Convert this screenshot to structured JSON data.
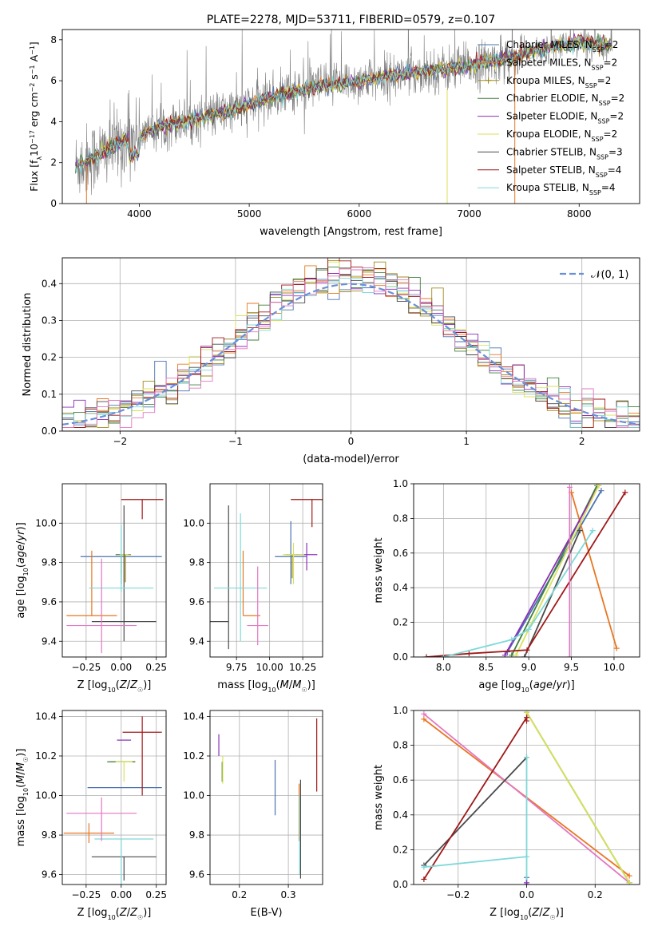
{
  "chart_data": [
    {
      "id": "spectrum",
      "type": "line",
      "title": "PLATE=2278, MJD=53711, FIBERID=0579, z=0.107",
      "xlabel": "wavelength [Angstrom, rest frame]",
      "ylabel": "Flux [f_λ 10^-17 erg cm^-2 s^-1 A^-1]",
      "xlim": [
        3300,
        8550
      ],
      "ylim": [
        0,
        8.5
      ],
      "xticks": [
        4000,
        5000,
        6000,
        7000,
        8000
      ],
      "yticks": [
        0,
        2,
        4,
        6,
        8
      ],
      "grid": false,
      "legend_position": "top-right",
      "data_series": {
        "name": "data",
        "color": "#808080"
      },
      "series": [
        {
          "name": "Chabrier MILES, N_SSP=2",
          "color": "#4c72b0"
        },
        {
          "name": "Salpeter MILES, N_SSP=2",
          "color": "#e87722"
        },
        {
          "name": "Kroupa MILES, N_SSP=2",
          "color": "#a0891e"
        },
        {
          "name": "Chabrier ELODIE, N_SSP=2",
          "color": "#3f7f3f"
        },
        {
          "name": "Salpeter ELODIE, N_SSP=2",
          "color": "#8b2fb8"
        },
        {
          "name": "Kroupa ELODIE, N_SSP=2",
          "color": "#d8e25a"
        },
        {
          "name": "Chabrier STELIB, N_SSP=3",
          "color": "#4a4a4a"
        },
        {
          "name": "Salpeter STELIB, N_SSP=4",
          "color": "#a01818"
        },
        {
          "name": "Kroupa STELIB, N_SSP=4",
          "color": "#7fd8d8"
        }
      ],
      "continuum": [
        [
          3400,
          1.8
        ],
        [
          3600,
          2.3
        ],
        [
          3800,
          2.9
        ],
        [
          4000,
          3.3
        ],
        [
          4200,
          3.8
        ],
        [
          4500,
          4.1
        ],
        [
          4800,
          4.5
        ],
        [
          5000,
          4.8
        ],
        [
          5200,
          5.2
        ],
        [
          5500,
          5.6
        ],
        [
          6000,
          6.0
        ],
        [
          6500,
          6.4
        ],
        [
          7000,
          6.7
        ],
        [
          7500,
          7.3
        ],
        [
          8000,
          7.9
        ],
        [
          8300,
          7.7
        ]
      ]
    },
    {
      "id": "residuals",
      "type": "line",
      "xlabel": "(data-model)/error",
      "ylabel": "Normed distribution",
      "xlim": [
        -2.5,
        2.5
      ],
      "ylim": [
        0,
        0.47
      ],
      "xticks": [
        -2,
        -1,
        0,
        1,
        2
      ],
      "yticks": [
        0,
        0.1,
        0.2,
        0.3,
        0.4
      ],
      "grid": true,
      "legend_position": "top-right",
      "reference": {
        "name": "𝒩(0, 1)",
        "color": "#6a8fd8"
      },
      "bin_width": 0.1
    },
    {
      "id": "Z_age",
      "type": "scatter",
      "xlabel": "Z [log10(Z/Z☉)]",
      "ylabel": "age [log10(age/yr)]",
      "xlim": [
        -0.42,
        0.32
      ],
      "ylim": [
        9.32,
        10.2
      ],
      "xticks": [
        -0.25,
        0.0,
        0.25
      ],
      "yticks": [
        9.4,
        9.6,
        9.8,
        10.0
      ],
      "grid": true,
      "points": [
        {
          "series": "Chabrier MILES",
          "x": 0.0,
          "y": 9.83,
          "xerr": [
            0.29,
            0.29
          ],
          "yerr": [
            0.14,
            0.0
          ],
          "color": "#4c72b0"
        },
        {
          "series": "Salpeter MILES",
          "x": -0.21,
          "y": 9.53,
          "xerr": [
            0.18,
            0.18
          ],
          "yerr": [
            0.0,
            0.33
          ],
          "color": "#e87722"
        },
        {
          "series": "Kroupa MILES",
          "x": 0.03,
          "y": 9.84,
          "xerr": [
            0.04,
            0.04
          ],
          "yerr": [
            0.14,
            0.0
          ],
          "color": "#a0891e"
        },
        {
          "series": "Chabrier ELODIE",
          "x": 0.0,
          "y": 9.84,
          "xerr": [
            0.04,
            0.04
          ],
          "yerr": [
            0.1,
            0.0
          ],
          "color": "#3f7f3f"
        },
        {
          "series": "Kroupa ELODIE",
          "x": 0.02,
          "y": 9.84,
          "xerr": [
            0.03,
            0.03
          ],
          "yerr": [
            0.14,
            0.02
          ],
          "color": "#d8e25a"
        },
        {
          "series": "Chabrier STELIB",
          "x": 0.02,
          "y": 9.5,
          "xerr": [
            0.23,
            0.23
          ],
          "yerr": [
            0.1,
            0.59
          ],
          "color": "#4a4a4a"
        },
        {
          "series": "Salpeter STELIB",
          "x": 0.15,
          "y": 10.12,
          "xerr": [
            0.15,
            0.15
          ],
          "yerr": [
            0.1,
            0.0
          ],
          "color": "#a01818"
        },
        {
          "series": "Kroupa STELIB",
          "x": 0.0,
          "y": 9.67,
          "xerr": [
            0.23,
            0.23
          ],
          "yerr": [
            0.02,
            0.32
          ],
          "color": "#7fd8d8"
        },
        {
          "series": "pink",
          "x": -0.14,
          "y": 9.48,
          "xerr": [
            0.25,
            0.25
          ],
          "yerr": [
            0.14,
            0.34
          ],
          "color": "#e377c2"
        }
      ]
    },
    {
      "id": "mass_age",
      "type": "scatter",
      "xlabel": "mass [log10(M/M☉)]",
      "ylabel": "",
      "xlim": [
        9.55,
        10.4
      ],
      "ylim": [
        9.32,
        10.2
      ],
      "xticks": [
        9.75,
        10.0,
        10.25
      ],
      "yticks": [
        9.4,
        9.6,
        9.8,
        10.0
      ],
      "grid": true,
      "points": [
        {
          "series": "Chabrier MILES",
          "x": 10.16,
          "y": 9.83,
          "xerr": [
            0.12,
            0.12
          ],
          "yerr": [
            0.14,
            0.18
          ],
          "color": "#4c72b0"
        },
        {
          "series": "Salpeter MILES",
          "x": 9.8,
          "y": 9.53,
          "xerr": [
            0.0,
            0.13
          ],
          "yerr": [
            0.0,
            0.33
          ],
          "color": "#e87722"
        },
        {
          "series": "Kroupa MILES",
          "x": 10.17,
          "y": 9.84,
          "xerr": [
            0.0,
            0.0
          ],
          "yerr": [
            0.12,
            0.0
          ],
          "color": "#a0891e"
        },
        {
          "series": "Chabrier ELODIE",
          "x": 10.17,
          "y": 9.84,
          "xerr": [
            0.05,
            0.05
          ],
          "yerr": [
            0.0,
            0.0
          ],
          "color": "#3f7f3f"
        },
        {
          "series": "Salpeter ELODIE",
          "x": 10.28,
          "y": 9.84,
          "xerr": [
            0.08,
            0.08
          ],
          "yerr": [
            0.08,
            0.06
          ],
          "color": "#8b2fb8"
        },
        {
          "series": "Kroupa ELODIE",
          "x": 10.18,
          "y": 9.84,
          "xerr": [
            0.08,
            0.08
          ],
          "yerr": [
            0.15,
            0.06
          ],
          "color": "#d8e25a"
        },
        {
          "series": "Chabrier STELIB",
          "x": 9.69,
          "y": 9.5,
          "xerr": [
            0.15,
            0.0
          ],
          "yerr": [
            0.14,
            0.59
          ],
          "color": "#4a4a4a"
        },
        {
          "series": "Salpeter STELIB",
          "x": 10.32,
          "y": 10.12,
          "xerr": [
            0.16,
            0.16
          ],
          "yerr": [
            0.14,
            0.0
          ],
          "color": "#a01818"
        },
        {
          "series": "Kroupa STELIB",
          "x": 9.78,
          "y": 9.67,
          "xerr": [
            0.2,
            0.2
          ],
          "yerr": [
            0.27,
            0.38
          ],
          "color": "#7fd8d8"
        },
        {
          "series": "pink",
          "x": 9.91,
          "y": 9.48,
          "xerr": [
            0.08,
            0.08
          ],
          "yerr": [
            0.1,
            0.3
          ],
          "color": "#e377c2"
        }
      ]
    },
    {
      "id": "age_weight",
      "type": "line",
      "xlabel": "age [log10(age/yr)]",
      "ylabel": "mass weight",
      "xlim": [
        7.65,
        10.3
      ],
      "ylim": [
        0,
        1
      ],
      "xticks": [
        8.0,
        8.5,
        9.0,
        9.5,
        10.0
      ],
      "yticks": [
        0,
        0.2,
        0.4,
        0.6,
        0.8,
        1.0
      ],
      "grid": true,
      "series": [
        {
          "color": "#4c72b0",
          "points": [
            [
              8.75,
              0.03
            ],
            [
              9.85,
              0.96
            ]
          ]
        },
        {
          "color": "#e87722",
          "points": [
            [
              9.5,
              0.95
            ],
            [
              10.03,
              0.05
            ]
          ]
        },
        {
          "color": "#3f7f3f",
          "points": [
            [
              8.8,
              0.01
            ],
            [
              9.8,
              0.99
            ]
          ]
        },
        {
          "color": "#8b2fb8",
          "points": [
            [
              8.72,
              0.01
            ],
            [
              9.82,
              0.99
            ]
          ]
        },
        {
          "color": "#d8e25a",
          "points": [
            [
              8.85,
              0.01
            ],
            [
              9.82,
              0.99
            ]
          ]
        },
        {
          "color": "#4a4a4a",
          "points": [
            [
              8.95,
              0.0
            ],
            [
              9.6,
              0.73
            ]
          ]
        },
        {
          "color": "#a01818",
          "points": [
            [
              7.8,
              0.0
            ],
            [
              8.3,
              0.02
            ],
            [
              8.98,
              0.04
            ],
            [
              10.13,
              0.95
            ]
          ]
        },
        {
          "color": "#7fd8d8",
          "points": [
            [
              8.0,
              0.0
            ],
            [
              8.8,
              0.1
            ],
            [
              9.0,
              0.16
            ],
            [
              9.75,
              0.73
            ]
          ]
        },
        {
          "color": "#e377c2",
          "points": [
            [
              9.48,
              0.0
            ],
            [
              9.48,
              0.98
            ]
          ]
        }
      ]
    },
    {
      "id": "Z_mass",
      "type": "scatter",
      "xlabel": "Z [log10(Z/Z☉)]",
      "ylabel": "mass [log10(M/M☉)]",
      "xlim": [
        -0.42,
        0.32
      ],
      "ylim": [
        9.55,
        10.43
      ],
      "xticks": [
        -0.25,
        0.0,
        0.25
      ],
      "yticks": [
        9.6,
        9.8,
        10.0,
        10.2,
        10.4
      ],
      "grid": true,
      "points": [
        {
          "series": "Chabrier MILES",
          "x": 0.0,
          "y": 10.04,
          "xerr": [
            0.24,
            0.29
          ],
          "yerr": [
            0.0,
            0.0
          ],
          "color": "#4c72b0"
        },
        {
          "series": "Salpeter MILES",
          "x": -0.23,
          "y": 9.81,
          "xerr": [
            0.18,
            0.18
          ],
          "yerr": [
            0.05,
            0.05
          ],
          "color": "#e87722"
        },
        {
          "series": "Kroupa MILES",
          "x": 0.0,
          "y": 10.17,
          "xerr": [
            0.08,
            0.1
          ],
          "yerr": [
            0.0,
            0.0
          ],
          "color": "#a0891e"
        },
        {
          "series": "Chabrier ELODIE",
          "x": 0.0,
          "y": 10.17,
          "xerr": [
            0.1,
            0.1
          ],
          "yerr": [
            0.0,
            0.0
          ],
          "color": "#3f7f3f"
        },
        {
          "series": "Salpeter ELODIE",
          "x": 0.02,
          "y": 10.28,
          "xerr": [
            0.05,
            0.05
          ],
          "yerr": [
            0.0,
            0.0
          ],
          "color": "#8b2fb8"
        },
        {
          "series": "Kroupa ELODIE",
          "x": 0.02,
          "y": 10.17,
          "xerr": [
            0.06,
            0.06
          ],
          "yerr": [
            0.1,
            0.0
          ],
          "color": "#d8e25a"
        },
        {
          "series": "Chabrier STELIB",
          "x": 0.02,
          "y": 9.69,
          "xerr": [
            0.23,
            0.23
          ],
          "yerr": [
            0.12,
            0.0
          ],
          "color": "#4a4a4a"
        },
        {
          "series": "Salpeter STELIB",
          "x": 0.15,
          "y": 10.32,
          "xerr": [
            0.14,
            0.14
          ],
          "yerr": [
            0.32,
            0.08
          ],
          "color": "#a01818"
        },
        {
          "series": "Kroupa STELIB",
          "x": 0.0,
          "y": 9.78,
          "xerr": [
            0.19,
            0.23
          ],
          "yerr": [
            0.24,
            0.0
          ],
          "color": "#7fd8d8"
        },
        {
          "series": "pink",
          "x": -0.14,
          "y": 9.91,
          "xerr": [
            0.25,
            0.25
          ],
          "yerr": [
            0.14,
            0.08
          ],
          "color": "#e377c2"
        }
      ]
    },
    {
      "id": "ebv_mass",
      "type": "scatter",
      "xlabel": "E(B-V)",
      "ylabel": "",
      "xlim": [
        0.14,
        0.37
      ],
      "ylim": [
        9.55,
        10.43
      ],
      "xticks": [
        0.2,
        0.3
      ],
      "yticks": [
        9.6,
        9.8,
        10.0,
        10.2,
        10.4
      ],
      "grid": true,
      "points": [
        {
          "series": "Chabrier MILES",
          "x": 0.273,
          "y": 10.04,
          "xerr": [
            0,
            0
          ],
          "yerr": [
            0.14,
            0.14
          ],
          "color": "#4c72b0"
        },
        {
          "series": "Salpeter MILES",
          "x": 0.322,
          "y": 9.81,
          "xerr": [
            0,
            0
          ],
          "yerr": [
            0.04,
            0.25
          ],
          "color": "#e87722"
        },
        {
          "series": "Kroupa MILES",
          "x": 0.165,
          "y": 10.17,
          "xerr": [
            0,
            0
          ],
          "yerr": [
            0.1,
            0.0
          ],
          "color": "#a0891e"
        },
        {
          "series": "Chabrier ELODIE",
          "x": 0.165,
          "y": 10.17,
          "xerr": [
            0,
            0
          ],
          "yerr": [
            0.1,
            0.0
          ],
          "color": "#3f7f3f"
        },
        {
          "series": "Salpeter ELODIE",
          "x": 0.158,
          "y": 10.25,
          "xerr": [
            0,
            0
          ],
          "yerr": [
            0.05,
            0.06
          ],
          "color": "#8b2fb8"
        },
        {
          "series": "Kroupa ELODIE",
          "x": 0.166,
          "y": 10.14,
          "xerr": [
            0,
            0
          ],
          "yerr": [
            0.08,
            0.06
          ],
          "color": "#d8e25a"
        },
        {
          "series": "Chabrier STELIB",
          "x": 0.325,
          "y": 9.82,
          "xerr": [
            0,
            0
          ],
          "yerr": [
            0.24,
            0.26
          ],
          "color": "#4a4a4a"
        },
        {
          "series": "Salpeter STELIB",
          "x": 0.358,
          "y": 10.2,
          "xerr": [
            0,
            0
          ],
          "yerr": [
            0.18,
            0.19
          ],
          "color": "#a01818"
        },
        {
          "series": "Kroupa STELIB",
          "x": 0.323,
          "y": 9.8,
          "xerr": [
            0,
            0
          ],
          "yerr": [
            0.2,
            0.2
          ],
          "color": "#7fd8d8"
        }
      ]
    },
    {
      "id": "Z_weight",
      "type": "line",
      "xlabel": "Z [log10(Z/Z☉)]",
      "ylabel": "mass weight",
      "xlim": [
        -0.33,
        0.33
      ],
      "ylim": [
        0,
        1
      ],
      "xticks": [
        -0.2,
        0.0,
        0.2
      ],
      "yticks": [
        0,
        0.2,
        0.4,
        0.6,
        0.8,
        1.0
      ],
      "grid": true,
      "series": [
        {
          "color": "#4c72b0",
          "points": [
            [
              0.0,
              0.0
            ],
            [
              0.0,
              0.04
            ]
          ]
        },
        {
          "color": "#e87722",
          "points": [
            [
              -0.3,
              0.95
            ],
            [
              0.3,
              0.05
            ]
          ]
        },
        {
          "color": "#e377c2",
          "points": [
            [
              -0.3,
              0.98
            ],
            [
              0.3,
              0.01
            ]
          ]
        },
        {
          "color": "#3f7f3f",
          "points": [
            [
              0.0,
              0.99
            ],
            [
              0.3,
              0.01
            ]
          ]
        },
        {
          "color": "#d8e25a",
          "points": [
            [
              0.0,
              0.99
            ],
            [
              0.3,
              0.01
            ]
          ]
        },
        {
          "color": "#4a4a4a",
          "points": [
            [
              -0.3,
              0.11
            ],
            [
              0.0,
              0.73
            ]
          ]
        },
        {
          "color": "#a01818",
          "points": [
            [
              -0.3,
              0.03
            ],
            [
              0.0,
              0.96
            ],
            [
              0.0,
              0.94
            ]
          ]
        },
        {
          "color": "#7fd8d8",
          "points": [
            [
              -0.3,
              0.1
            ],
            [
              0.0,
              0.16
            ],
            [
              0.0,
              0.0
            ],
            [
              0.0,
              0.73
            ]
          ]
        },
        {
          "color": "#8b2fb8",
          "points": [
            [
              0.0,
              0.0
            ],
            [
              0.0,
              0.01
            ]
          ]
        }
      ]
    }
  ]
}
